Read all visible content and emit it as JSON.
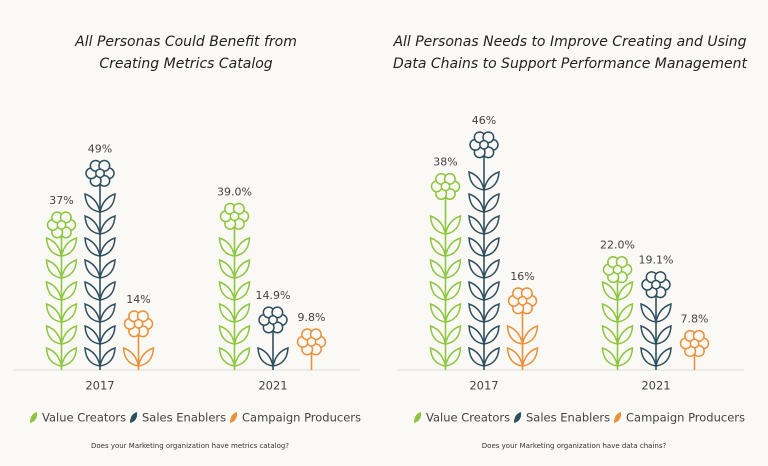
{
  "chart_data": [
    {
      "type": "pictogram-bar",
      "title": [
        "All Personas Could Benefit from",
        "Creating Metrics Catalog"
      ],
      "categories": [
        "2017",
        "2021"
      ],
      "series": [
        {
          "name": "Value Creators",
          "color": "#8cc63e",
          "values": [
            37,
            39.0
          ],
          "value_labels": [
            "37%",
            "39.0%"
          ]
        },
        {
          "name": "Sales Enablers",
          "color": "#2f4f60",
          "values": [
            49,
            14.9
          ],
          "value_labels": [
            "49%",
            "14.9%"
          ]
        },
        {
          "name": "Campaign Producers",
          "color": "#e8913a",
          "values": [
            14,
            9.8
          ],
          "value_labels": [
            "14%",
            "9.8%"
          ]
        }
      ],
      "ylim": [
        0,
        50
      ],
      "note": "Does your Marketing organization have metrics catalog?"
    },
    {
      "type": "pictogram-bar",
      "title": [
        "All Personas Needs to Improve Creating and Using",
        "Data Chains to Support Performance Management"
      ],
      "categories": [
        "2017",
        "2021"
      ],
      "series": [
        {
          "name": "Value Creators",
          "color": "#8cc63e",
          "values": [
            38,
            22.0
          ],
          "value_labels": [
            "38%",
            "22.0%"
          ]
        },
        {
          "name": "Sales Enablers",
          "color": "#2f4f60",
          "values": [
            46,
            19.1
          ],
          "value_labels": [
            "46%",
            "19.1%"
          ]
        },
        {
          "name": "Campaign Producers",
          "color": "#e8913a",
          "values": [
            16,
            7.8
          ],
          "value_labels": [
            "16%",
            "7.8%"
          ]
        }
      ],
      "ylim": [
        0,
        50
      ],
      "note": "Does your Marketing organization have data chains?"
    }
  ]
}
